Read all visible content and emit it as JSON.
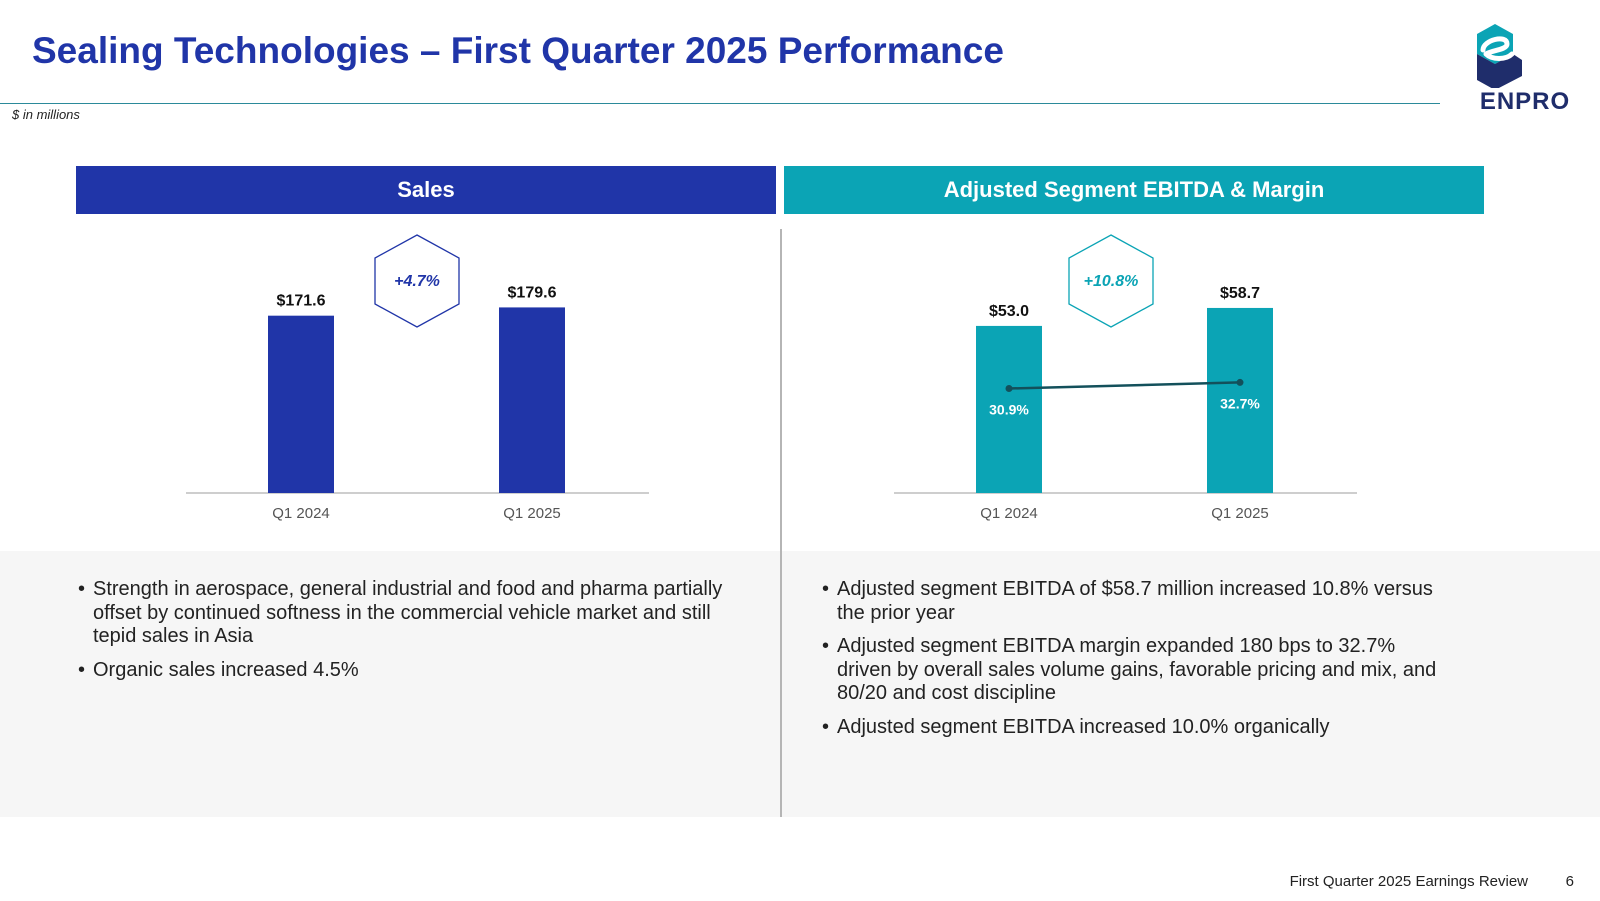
{
  "title": "Sealing Technologies – First Quarter 2025 Performance",
  "units_note": "$ in millions",
  "logo": {
    "wordmark": "ENPRO"
  },
  "colors": {
    "navy": "#2035a8",
    "teal": "#0ba4b5",
    "dark_teal": "#13505b",
    "logo_teal": "#0ba4b5",
    "logo_navy": "#1f2d6b"
  },
  "sales_panel": {
    "header": "Sales",
    "bullets": [
      "Strength in aerospace, general industrial and food and pharma partially offset by continued softness in the commercial vehicle market and still tepid sales in Asia",
      " Organic sales increased 4.5%"
    ]
  },
  "ebitda_panel": {
    "header": "Adjusted Segment EBITDA & Margin",
    "bullets": [
      "Adjusted segment EBITDA of $58.7 million increased 10.8% versus the prior year",
      "Adjusted segment EBITDA margin expanded 180 bps to 32.7% driven by overall sales volume gains, favorable pricing and mix, and 80/20 and cost discipline",
      "Adjusted segment EBITDA increased 10.0% organically"
    ]
  },
  "chart_data": [
    {
      "type": "bar",
      "title": "Sales",
      "categories": [
        "Q1 2024",
        "Q1 2025"
      ],
      "values": [
        171.6,
        179.6
      ],
      "value_labels": [
        "$171.6",
        "$179.6"
      ],
      "growth_label": "+4.7%",
      "ylim": [
        0,
        180
      ],
      "grid": false,
      "color": "#2035a8"
    },
    {
      "type": "bar",
      "title": "Adjusted Segment EBITDA & Margin",
      "categories": [
        "Q1 2024",
        "Q1 2025"
      ],
      "values": [
        53.0,
        58.7
      ],
      "value_labels": [
        "$53.0",
        "$58.7"
      ],
      "growth_label": "+10.8%",
      "ylim": [
        0,
        59
      ],
      "grid": false,
      "color": "#0ba4b5",
      "line_series": {
        "name": "Margin",
        "values": [
          30.9,
          32.7
        ],
        "value_labels": [
          "30.9%",
          "32.7%"
        ],
        "ylim": [
          0,
          55
        ],
        "color": "#13505b"
      }
    }
  ],
  "footer": {
    "text": "First Quarter 2025 Earnings Review",
    "page": "6"
  }
}
